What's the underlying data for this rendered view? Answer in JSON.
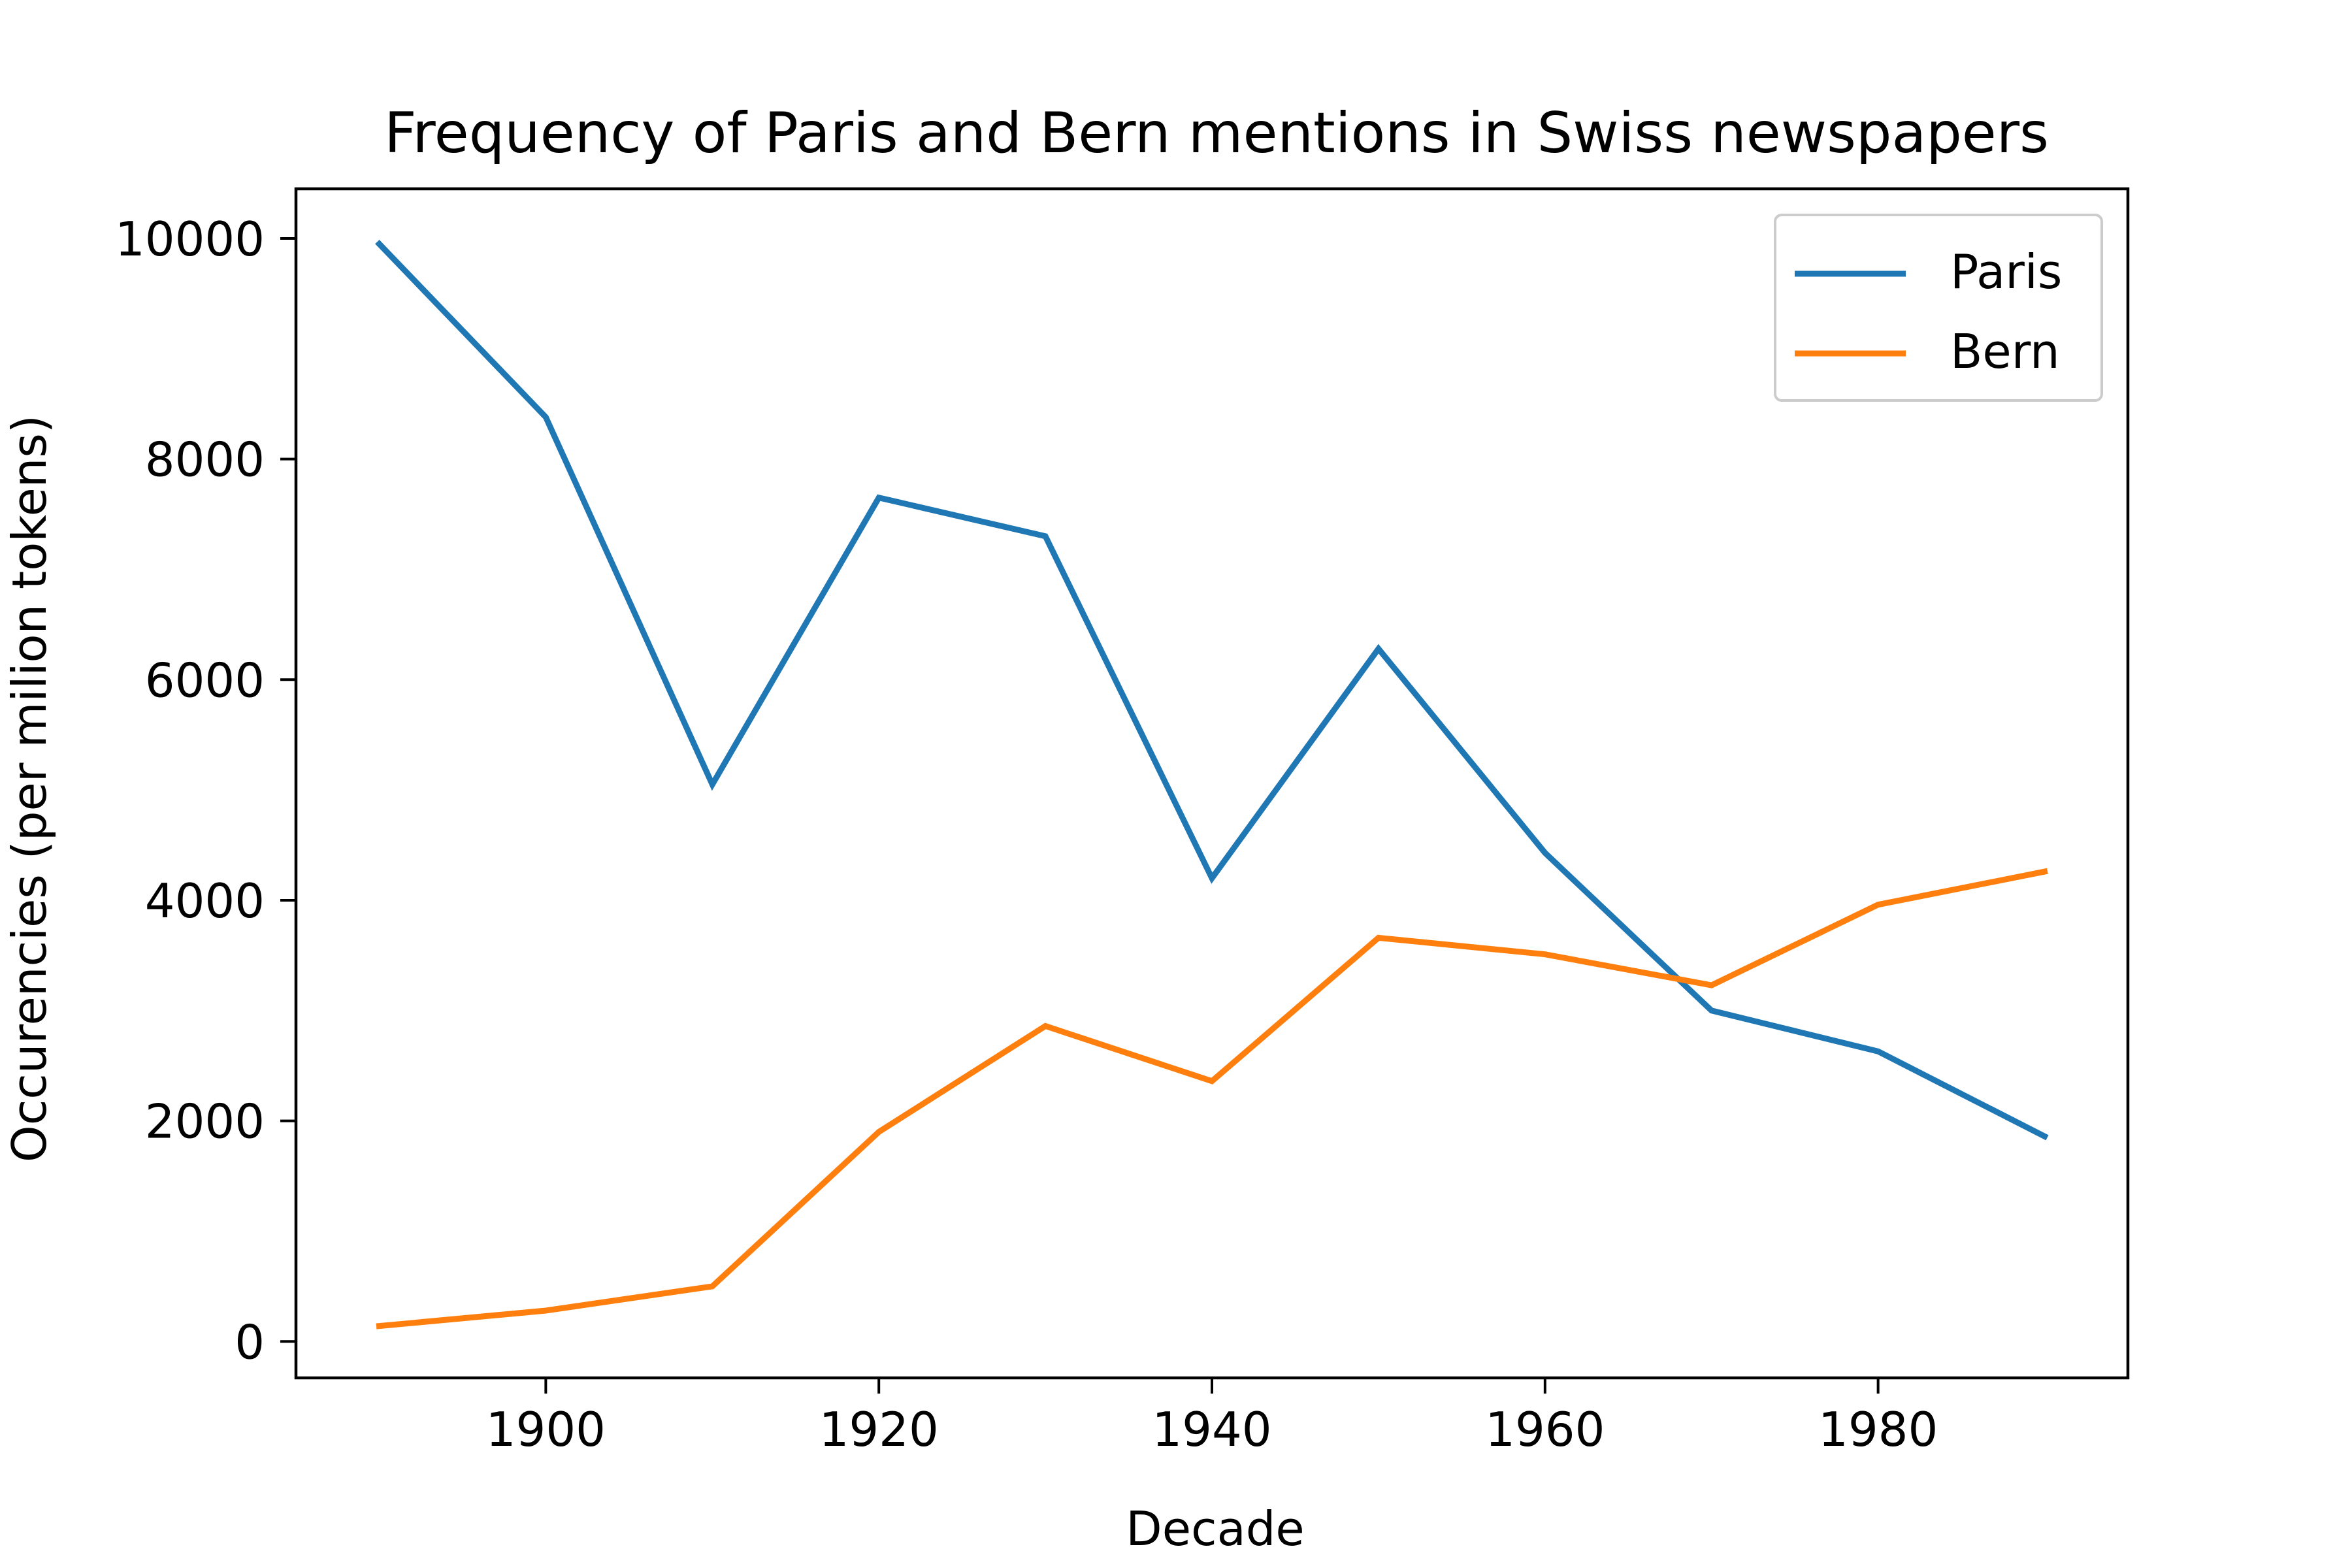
{
  "chart_data": {
    "type": "line",
    "title": "Frequency of Paris and Bern mentions in Swiss newspapers",
    "xlabel": "Decade",
    "ylabel": "Occurencies (per milion tokens)",
    "x": [
      1890,
      1900,
      1910,
      1920,
      1930,
      1940,
      1950,
      1960,
      1970,
      1980,
      1990
    ],
    "xlim": [
      1885,
      1995
    ],
    "ylim": [
      -330,
      10450
    ],
    "xticks": [
      1900,
      1920,
      1940,
      1960,
      1980
    ],
    "yticks": [
      0,
      2000,
      4000,
      6000,
      8000,
      10000
    ],
    "grid": false,
    "legend_position": "top-right",
    "series": [
      {
        "name": "Paris",
        "color": "#1f77b4",
        "values": [
          9950,
          8380,
          5050,
          7650,
          7300,
          4200,
          6280,
          4430,
          3000,
          2630,
          1860
        ]
      },
      {
        "name": "Bern",
        "color": "#ff7f0e",
        "values": [
          140,
          280,
          500,
          1900,
          2860,
          2360,
          3660,
          3510,
          3230,
          3960,
          4260
        ]
      }
    ]
  }
}
